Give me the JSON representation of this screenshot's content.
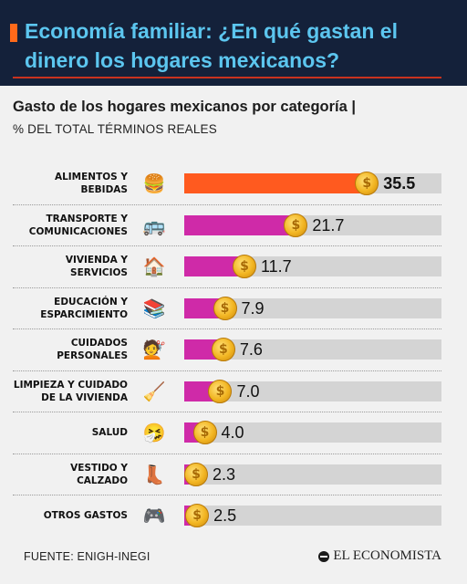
{
  "header": {
    "title": "Economía familiar: ¿En qué gastan el dinero los hogares mexicanos?"
  },
  "chart_data": {
    "type": "bar",
    "orientation": "horizontal",
    "title": "Gasto de los hogares mexicanos por categoría |",
    "subtitle": "% DEL TOTAL TÉRMINOS REALES",
    "xlim": [
      0,
      50
    ],
    "categories": [
      "ALIMENTOS Y\nBEBIDAS",
      "TRANSPORTE Y\nCOMUNICACIONES",
      "VIVIENDA Y\nSERVICIOS",
      "EDUCACIÓN Y\nESPARCIMIENTO",
      "CUIDADOS\nPERSONALES",
      "LIMPIEZA Y CUIDADO\nDE LA VIVIENDA",
      "SALUD",
      "VESTIDO Y\nCALZADO",
      "OTROS GASTOS"
    ],
    "values": [
      35.5,
      21.7,
      11.7,
      7.9,
      7.6,
      7.0,
      4.0,
      2.3,
      2.5
    ],
    "value_labels": [
      "35.5",
      "21.7",
      "11.7",
      "7.9",
      "7.6",
      "7.0",
      "4.0",
      "2.3",
      "2.5"
    ],
    "icons": [
      "burger-icon",
      "bus-icon",
      "house-icon",
      "books-icon",
      "haircut-icon",
      "broom-icon",
      "sick-face-icon",
      "boot-icon",
      "gamepad-icon"
    ],
    "icon_glyphs": [
      "🍔",
      "🚌",
      "🏠",
      "📚",
      "💇",
      "🧹",
      "🤧",
      "👢",
      "🎮"
    ],
    "highlight_index": 0,
    "colors": {
      "highlight": "#ff5a1f",
      "bar": "#cf2aa8",
      "track": "#d4d4d4",
      "coin": "#f2b522"
    },
    "coin_symbol": "$"
  },
  "footer": {
    "source": "FUENTE: ENIGH-INEGI",
    "brand": "EL ECONOMISTA"
  }
}
